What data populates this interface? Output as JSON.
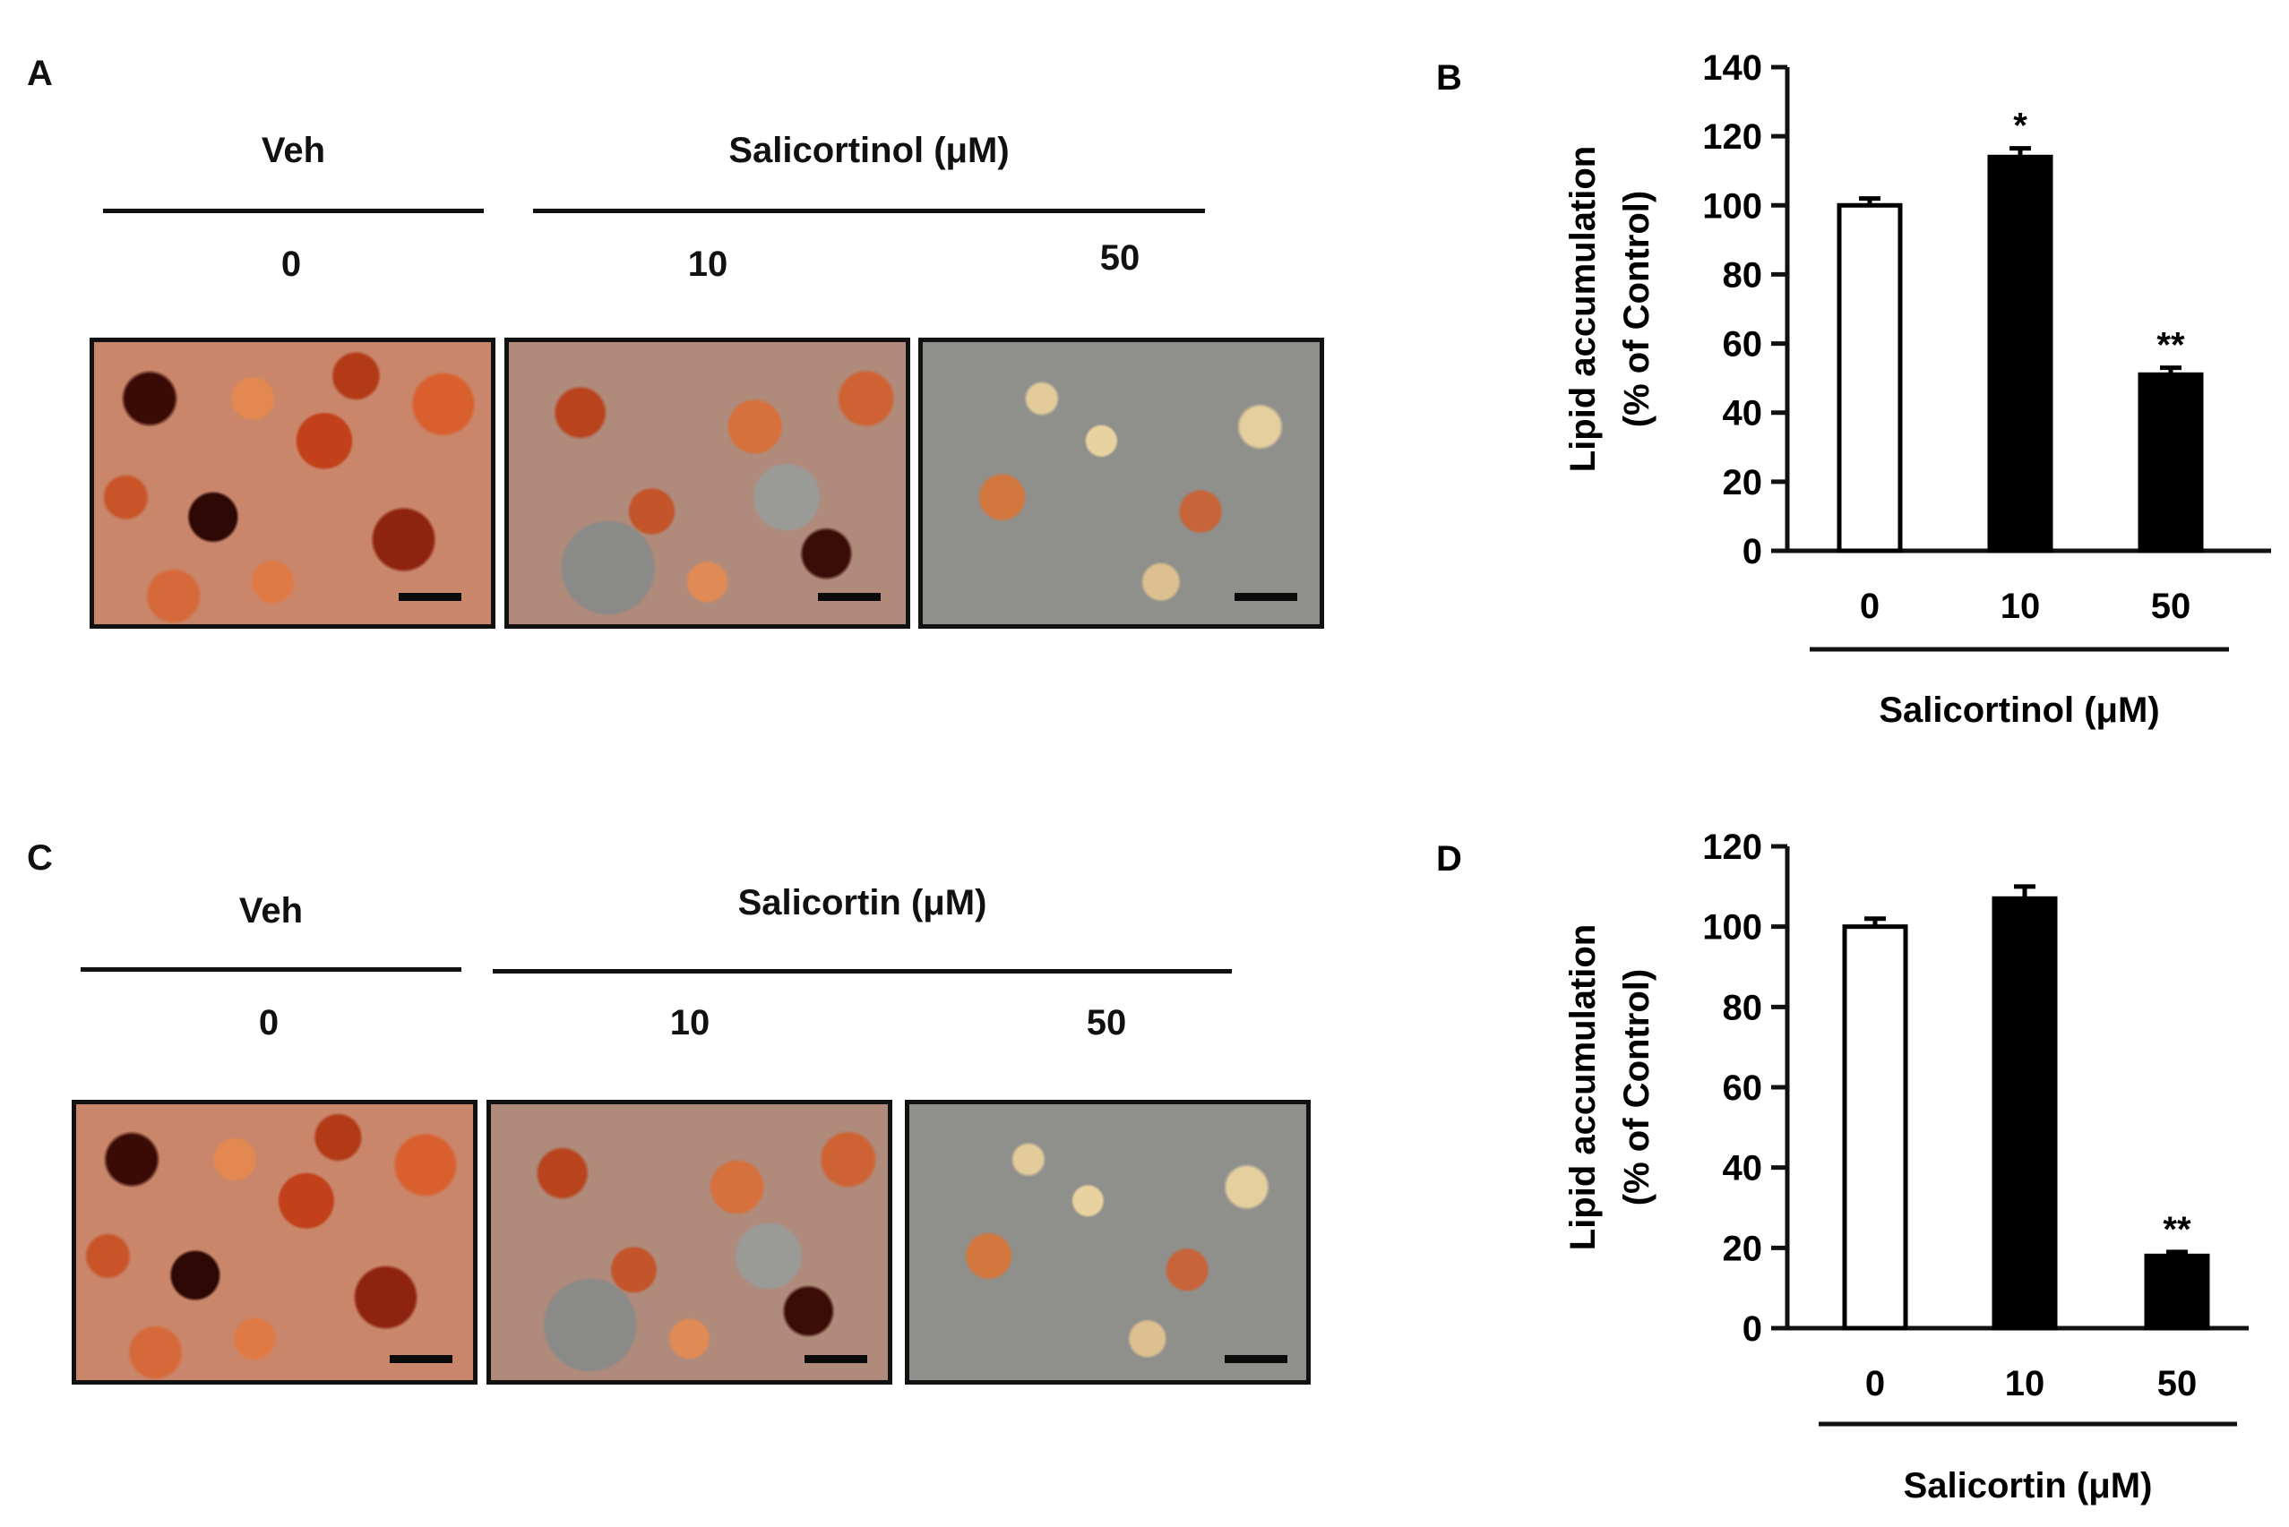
{
  "panel_a": {
    "letter": "A",
    "group_left": "Veh",
    "group_right": "Salicortinol (μM)",
    "doses": [
      "0",
      "10",
      "50"
    ]
  },
  "panel_c": {
    "letter": "C",
    "group_left": "Veh",
    "group_right": "Salicortin (μM)",
    "doses": [
      "0",
      "10",
      "50"
    ]
  },
  "chart_data": [
    {
      "panel": "B",
      "type": "bar",
      "categories": [
        "0",
        "10",
        "50"
      ],
      "values": [
        100,
        114,
        51
      ],
      "errors": [
        2,
        2.5,
        2
      ],
      "annotations": [
        "",
        "*",
        "**"
      ],
      "bar_fill": [
        "white",
        "black",
        "black"
      ],
      "ylabel_line1": "Lipid accumulation",
      "ylabel_line2": "(% of Control)",
      "xlabel": "Salicortinol (μM)",
      "ylim": [
        0,
        140
      ],
      "yticks": [
        0,
        20,
        40,
        60,
        80,
        100,
        120,
        140
      ]
    },
    {
      "panel": "D",
      "type": "bar",
      "categories": [
        "0",
        "10",
        "50"
      ],
      "values": [
        100,
        107,
        18
      ],
      "errors": [
        2,
        3,
        1
      ],
      "annotations": [
        "",
        "",
        "**"
      ],
      "bar_fill": [
        "white",
        "black",
        "black"
      ],
      "ylabel_line1": "Lipid accumulation",
      "ylabel_line2": "(% of Control)",
      "xlabel": "Salicortin (μM)",
      "ylim": [
        0,
        120
      ],
      "yticks": [
        0,
        20,
        40,
        60,
        80,
        100,
        120
      ]
    }
  ]
}
